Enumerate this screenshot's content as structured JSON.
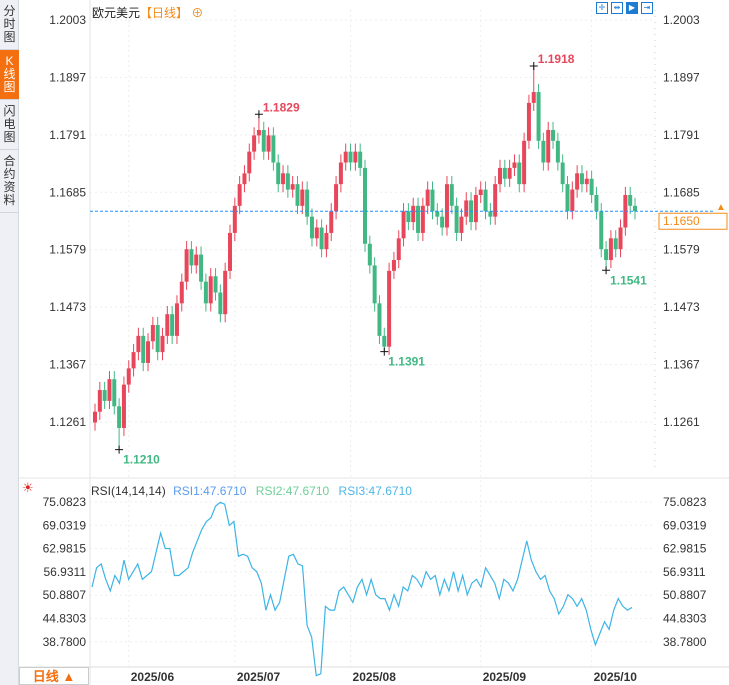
{
  "sidebar": {
    "items": [
      {
        "label": "分时图"
      },
      {
        "label": "K线图",
        "active": true
      },
      {
        "label": "闪电图"
      },
      {
        "label": "合约资料"
      }
    ]
  },
  "header": {
    "symbol": "欧元美元",
    "timeframe": "【日线】",
    "add_icon": "plus-circle-icon"
  },
  "toolbar": {
    "icons": [
      "crosshair-icon",
      "range-icon",
      "play-forward-icon",
      "scroll-right-icon"
    ]
  },
  "price_axis": {
    "ticks": [
      "1.2003",
      "1.1897",
      "1.1791",
      "1.1685",
      "1.1579",
      "1.1473",
      "1.1367",
      "1.1261"
    ],
    "current": "1.1650"
  },
  "colors": {
    "up": "#e8465a",
    "down": "#41b883",
    "current_line": "#1e90ff",
    "rsi": "#3cb4e6",
    "accent": "#f36f0f"
  },
  "chart_data": [
    {
      "type": "candlestick",
      "ylim": [
        1.1155,
        1.202
      ],
      "x_ticks": [
        "2025/06",
        "2025/07",
        "2025/08",
        "2025/09",
        "2025/10"
      ],
      "x_tick_index": [
        7,
        29,
        53,
        80,
        103
      ],
      "close": [
        1.128,
        1.132,
        1.13,
        1.134,
        1.129,
        1.125,
        1.133,
        1.136,
        1.139,
        1.142,
        1.137,
        1.141,
        1.144,
        1.139,
        1.142,
        1.146,
        1.142,
        1.148,
        1.152,
        1.158,
        1.155,
        1.157,
        1.152,
        1.148,
        1.153,
        1.15,
        1.146,
        1.154,
        1.161,
        1.166,
        1.17,
        1.172,
        1.176,
        1.179,
        1.18,
        1.176,
        1.179,
        1.174,
        1.17,
        1.172,
        1.169,
        1.17,
        1.166,
        1.169,
        1.164,
        1.16,
        1.162,
        1.158,
        1.161,
        1.165,
        1.17,
        1.174,
        1.176,
        1.174,
        1.176,
        1.173,
        1.159,
        1.155,
        1.148,
        1.142,
        1.14,
        1.154,
        1.156,
        1.16,
        1.165,
        1.163,
        1.166,
        1.161,
        1.166,
        1.169,
        1.165,
        1.164,
        1.162,
        1.17,
        1.166,
        1.161,
        1.164,
        1.167,
        1.163,
        1.168,
        1.169,
        1.165,
        1.164,
        1.17,
        1.173,
        1.171,
        1.173,
        1.174,
        1.17,
        1.178,
        1.185,
        1.187,
        1.178,
        1.174,
        1.18,
        1.178,
        1.174,
        1.17,
        1.165,
        1.169,
        1.172,
        1.17,
        1.171,
        1.168,
        1.165,
        1.158,
        1.156,
        1.16,
        1.158,
        1.162,
        1.168,
        1.166,
        1.165
      ],
      "annotations": [
        {
          "label": "1.1210",
          "index": 5,
          "value": 1.121,
          "kind": "low"
        },
        {
          "label": "1.1829",
          "index": 34,
          "value": 1.1829,
          "kind": "high"
        },
        {
          "label": "1.1391",
          "index": 60,
          "value": 1.1391,
          "kind": "low"
        },
        {
          "label": "1.1918",
          "index": 91,
          "value": 1.1918,
          "kind": "high"
        },
        {
          "label": "1.1541",
          "index": 106,
          "value": 1.1541,
          "kind": "low"
        }
      ],
      "current_price": 1.165
    },
    {
      "type": "line",
      "title": "RSI(14,14,14)",
      "legend": [
        {
          "name": "RSI1:47.6710",
          "color": "#5b9cf0"
        },
        {
          "name": "RSI2:47.6710",
          "color": "#6fcf97"
        },
        {
          "name": "RSI3:47.6710",
          "color": "#4fb6e8"
        }
      ],
      "y_ticks": [
        "75.0823",
        "69.0319",
        "62.9815",
        "56.9311",
        "50.8807",
        "44.8303",
        "38.7800"
      ],
      "ylim": [
        33.5,
        78
      ],
      "values": [
        53,
        58,
        59,
        55,
        52,
        56,
        54,
        60,
        55,
        57,
        59,
        55,
        56,
        57,
        62,
        67,
        63,
        63,
        56,
        56,
        57,
        58,
        62,
        65,
        68,
        70,
        71,
        74,
        75,
        74.5,
        69,
        70,
        61,
        61.5,
        61,
        58,
        57,
        54,
        47,
        51,
        47,
        49,
        55,
        61,
        61.5,
        59,
        58.5,
        43,
        40,
        30,
        30.5,
        48,
        47,
        47,
        52,
        53,
        51,
        49,
        53,
        55,
        51,
        55,
        51,
        50,
        50,
        47,
        51,
        48,
        53,
        52,
        56,
        55,
        53,
        57,
        55,
        56,
        51,
        55,
        52,
        57,
        52,
        56,
        51,
        54,
        55,
        53,
        58,
        56,
        54,
        50,
        55,
        54,
        52,
        55,
        60,
        65,
        60,
        57,
        55,
        56,
        52,
        50,
        46,
        48,
        51,
        50,
        48,
        50,
        47,
        42,
        38,
        41,
        44,
        42,
        47,
        50,
        48,
        47,
        47.7
      ]
    }
  ],
  "rsi_panel": {
    "settings_icon": "sun-settings-icon"
  },
  "bottom": {
    "timeframe_label": "日线 ▲"
  }
}
